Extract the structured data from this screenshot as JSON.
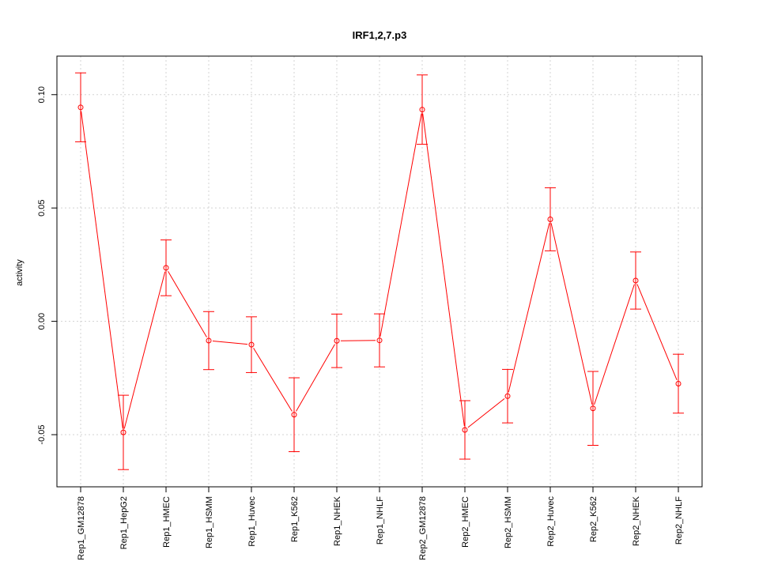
{
  "chart_data": {
    "type": "line",
    "title": "IRF1,2,7.p3",
    "xlabel": "",
    "ylabel": "activity",
    "ylim": [
      -0.073,
      0.117
    ],
    "yticks": [
      -0.05,
      0.0,
      0.05,
      0.1
    ],
    "ytick_labels": [
      "-0.05",
      "0.00",
      "0.05",
      "0.10"
    ],
    "grid": true,
    "color": "#ff0000",
    "categories": [
      "Rep1_GM12878",
      "Rep1_HepG2",
      "Rep1_HMEC",
      "Rep1_HSMM",
      "Rep1_Huvec",
      "Rep1_K562",
      "Rep1_NHEK",
      "Rep1_NHLF",
      "Rep2_GM12878",
      "Rep2_HMEC",
      "Rep2_HSMM",
      "Rep2_Huvec",
      "Rep2_K562",
      "Rep2_NHEK",
      "Rep2_NHLF"
    ],
    "values": [
      0.0944,
      -0.049,
      0.0236,
      -0.0085,
      -0.0103,
      -0.0412,
      -0.0086,
      -0.0084,
      0.0934,
      -0.0479,
      -0.033,
      0.045,
      -0.0384,
      0.018,
      -0.0275
    ],
    "error_upper": [
      0.1096,
      -0.0326,
      0.0359,
      0.0043,
      0.002,
      -0.0249,
      0.0032,
      0.0033,
      0.1087,
      -0.035,
      -0.0212,
      0.0589,
      -0.0221,
      0.0306,
      -0.0145
    ],
    "error_lower": [
      0.0792,
      -0.0654,
      0.0113,
      -0.0213,
      -0.0226,
      -0.0575,
      -0.0204,
      -0.0201,
      0.0781,
      -0.0608,
      -0.0448,
      0.0311,
      -0.0547,
      0.0054,
      -0.0405
    ]
  }
}
